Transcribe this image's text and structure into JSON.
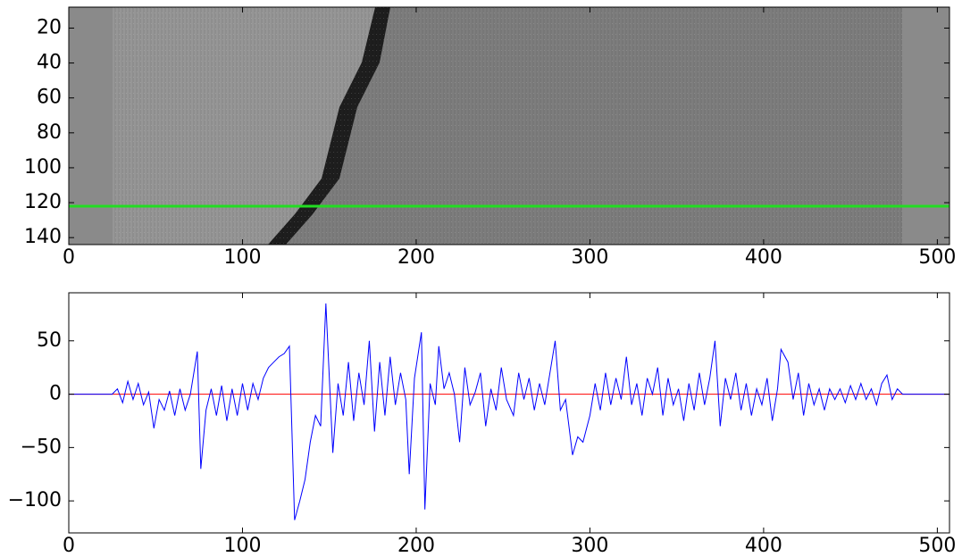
{
  "chart_data": [
    {
      "type": "image",
      "xlim": [
        0,
        507
      ],
      "ylim": [
        144,
        8
      ],
      "xticks": [
        0,
        100,
        200,
        300,
        400,
        500
      ],
      "yticks": [
        20,
        40,
        60,
        80,
        100,
        120,
        140
      ],
      "hline": 122,
      "hline_color": "#22dd22"
    },
    {
      "type": "line",
      "xlim": [
        0,
        507
      ],
      "ylim": [
        -130,
        95
      ],
      "xticks": [
        0,
        100,
        200,
        300,
        400,
        500
      ],
      "yticks": [
        {
          "value": -100,
          "label": "−100"
        },
        {
          "value": -50,
          "label": "−50"
        },
        0,
        50
      ],
      "hline": 0,
      "hline_color": "#ff0000",
      "color": "#0000ff",
      "x": [
        0,
        25,
        28,
        31,
        34,
        37,
        40,
        43,
        46,
        49,
        52,
        55,
        58,
        61,
        64,
        67,
        70,
        74,
        76,
        79,
        82,
        85,
        88,
        91,
        94,
        97,
        100,
        103,
        106,
        109,
        112,
        115,
        118,
        121,
        124,
        127,
        130,
        133,
        136,
        139,
        142,
        145,
        148,
        152,
        155,
        158,
        161,
        164,
        167,
        170,
        173,
        176,
        179,
        182,
        185,
        188,
        191,
        194,
        196,
        199,
        203,
        205,
        208,
        211,
        213,
        216,
        219,
        222,
        225,
        228,
        231,
        234,
        237,
        240,
        243,
        246,
        249,
        252,
        256,
        259,
        262,
        265,
        268,
        271,
        274,
        277,
        280,
        283,
        286,
        290,
        293,
        296,
        300,
        303,
        306,
        309,
        312,
        315,
        318,
        321,
        324,
        327,
        330,
        333,
        336,
        339,
        342,
        345,
        348,
        351,
        354,
        357,
        360,
        363,
        366,
        369,
        372,
        375,
        378,
        381,
        384,
        387,
        390,
        393,
        396,
        399,
        402,
        405,
        408,
        410,
        414,
        417,
        420,
        423,
        426,
        429,
        432,
        435,
        438,
        441,
        444,
        447,
        450,
        453,
        456,
        459,
        462,
        465,
        468,
        471,
        474,
        477,
        480,
        507
      ],
      "values": [
        0,
        0,
        5,
        -8,
        12,
        -5,
        10,
        -10,
        2,
        -32,
        -5,
        -15,
        3,
        -20,
        5,
        -15,
        0,
        40,
        -70,
        -15,
        5,
        -20,
        8,
        -25,
        5,
        -20,
        10,
        -15,
        10,
        -5,
        15,
        25,
        30,
        35,
        38,
        45,
        -118,
        -100,
        -80,
        -45,
        -20,
        -30,
        85,
        -55,
        10,
        -20,
        30,
        -25,
        20,
        -10,
        50,
        -35,
        30,
        -20,
        35,
        -10,
        20,
        -5,
        -75,
        15,
        58,
        -108,
        10,
        -10,
        45,
        5,
        20,
        0,
        -45,
        25,
        -10,
        2,
        20,
        -30,
        5,
        -15,
        25,
        -5,
        -20,
        20,
        -5,
        15,
        -15,
        10,
        -10,
        20,
        50,
        -15,
        -5,
        -57,
        -40,
        -45,
        -20,
        10,
        -15,
        20,
        -10,
        15,
        -5,
        35,
        -10,
        10,
        -20,
        15,
        0,
        25,
        -20,
        15,
        -10,
        5,
        -25,
        10,
        -15,
        20,
        -10,
        15,
        50,
        -30,
        15,
        -5,
        20,
        -15,
        10,
        -20,
        5,
        -10,
        15,
        -25,
        5,
        42,
        30,
        -5,
        20,
        -20,
        10,
        -10,
        5,
        -15,
        5,
        -5,
        5,
        -8,
        8,
        -5,
        10,
        -5,
        5,
        -10,
        10,
        18,
        -5,
        5,
        0,
        0
      ]
    }
  ]
}
